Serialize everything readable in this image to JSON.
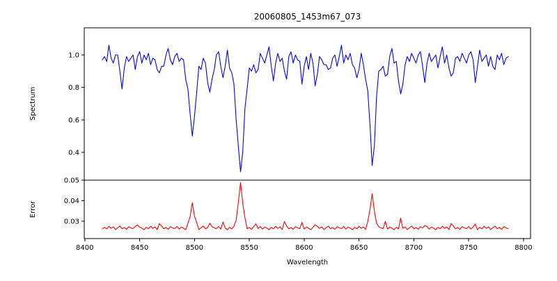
{
  "figure_title": "20060805_1453m67_073",
  "chart_data": [
    {
      "type": "line",
      "name": "spectrum",
      "title": "20060805_1453m67_073",
      "ylabel": "Spectrum",
      "line_color": "#0000ff",
      "axis_color": "#000000",
      "legend": "none",
      "grid": false,
      "xlim": [
        8399.5,
        8806.4
      ],
      "ylim": [
        0.229,
        1.167
      ],
      "yticks": [
        0.4,
        0.6,
        0.8,
        1.0
      ],
      "ytick_labels": [
        "0.4",
        "0.6",
        "0.8",
        "1.0"
      ],
      "x_start": 8416,
      "x_step": 2,
      "values": [
        0.97,
        0.99,
        0.96,
        1.06,
        0.98,
        0.95,
        1.0,
        1.0,
        0.9,
        0.79,
        0.92,
        0.99,
        0.96,
        0.98,
        1.0,
        0.91,
        0.99,
        1.02,
        0.95,
        1.0,
        0.97,
        1.01,
        0.94,
        0.98,
        0.97,
        0.91,
        0.89,
        0.93,
        0.93,
        1.0,
        1.04,
        0.97,
        0.94,
        0.99,
        1.01,
        0.96,
        0.98,
        0.97,
        0.85,
        0.79,
        0.64,
        0.5,
        0.62,
        0.77,
        0.93,
        0.91,
        0.98,
        0.95,
        0.83,
        0.77,
        0.85,
        0.91,
        1.0,
        1.02,
        0.93,
        0.86,
        0.93,
        1.03,
        0.92,
        0.89,
        0.82,
        0.6,
        0.44,
        0.28,
        0.4,
        0.67,
        0.79,
        0.92,
        0.9,
        0.94,
        0.89,
        0.91,
        1.01,
        0.98,
        0.95,
        1.0,
        1.05,
        0.93,
        0.84,
        0.95,
        1.01,
        0.96,
        0.98,
        0.9,
        0.85,
        0.99,
        1.02,
        0.95,
        1.0,
        0.97,
        0.96,
        0.82,
        0.93,
        0.99,
        0.91,
        1.01,
        0.95,
        0.81,
        0.88,
        0.99,
        0.97,
        0.94,
        0.94,
        0.91,
        0.92,
        0.98,
        1.0,
        0.93,
        0.99,
        1.06,
        0.95,
        1.0,
        0.97,
        1.01,
        0.94,
        0.92,
        0.86,
        0.91,
        1.01,
        0.94,
        0.85,
        0.78,
        0.57,
        0.32,
        0.44,
        0.74,
        0.9,
        0.91,
        0.93,
        0.87,
        0.88,
        0.99,
        1.04,
        0.95,
        0.96,
        0.84,
        0.76,
        0.82,
        0.94,
        0.99,
        0.96,
        1.01,
        0.98,
        0.95,
        1.0,
        1.02,
        0.93,
        0.83,
        0.95,
        1.01,
        0.96,
        0.98,
        1.0,
        0.92,
        0.99,
        1.05,
        0.95,
        1.0,
        0.92,
        0.87,
        0.89,
        0.98,
        0.99,
        0.96,
        1.01,
        0.98,
        0.95,
        1.0,
        1.02,
        0.97,
        0.83,
        0.93,
        1.03,
        0.96,
        0.98,
        1.0,
        0.93,
        0.99,
        0.93,
        0.91,
        1.0,
        0.97,
        1.01,
        0.94,
        0.98,
        0.99
      ]
    },
    {
      "type": "line",
      "name": "error",
      "ylabel": "Error",
      "xlabel": "Wavelength",
      "line_color": "#ff0000",
      "axis_color": "#000000",
      "legend": "none",
      "grid": false,
      "xlim": [
        8399.5,
        8806.4
      ],
      "ylim": [
        0.0215,
        0.05
      ],
      "yticks": [
        0.03,
        0.04,
        0.05
      ],
      "ytick_labels": [
        "0.03",
        "0.04",
        "0.05"
      ],
      "xticks": [
        8400,
        8450,
        8500,
        8550,
        8600,
        8650,
        8700,
        8750,
        8800
      ],
      "xtick_labels": [
        "8400",
        "8450",
        "8500",
        "8550",
        "8600",
        "8650",
        "8700",
        "8750",
        "8800"
      ],
      "x_start": 8416,
      "x_step": 2,
      "values": [
        0.0262,
        0.027,
        0.0262,
        0.0275,
        0.0265,
        0.0272,
        0.0259,
        0.0268,
        0.0276,
        0.0263,
        0.0269,
        0.026,
        0.0273,
        0.0267,
        0.0264,
        0.0274,
        0.0281,
        0.0271,
        0.0266,
        0.0258,
        0.027,
        0.0262,
        0.0275,
        0.0265,
        0.0272,
        0.0259,
        0.0288,
        0.0276,
        0.0263,
        0.0269,
        0.026,
        0.0273,
        0.0267,
        0.0264,
        0.0274,
        0.0261,
        0.0271,
        0.0266,
        0.0258,
        0.029,
        0.0322,
        0.039,
        0.0325,
        0.0292,
        0.0259,
        0.0268,
        0.0276,
        0.0263,
        0.0269,
        0.029,
        0.0273,
        0.0267,
        0.0264,
        0.0274,
        0.0261,
        0.0296,
        0.0266,
        0.0258,
        0.027,
        0.0262,
        0.0275,
        0.0305,
        0.0392,
        0.0489,
        0.0388,
        0.0316,
        0.0263,
        0.0269,
        0.026,
        0.0273,
        0.0287,
        0.0264,
        0.0274,
        0.0261,
        0.0271,
        0.0266,
        0.0258,
        0.027,
        0.0262,
        0.0275,
        0.0265,
        0.0272,
        0.0259,
        0.0298,
        0.0276,
        0.0263,
        0.0269,
        0.026,
        0.0273,
        0.0267,
        0.0264,
        0.0294,
        0.0261,
        0.0271,
        0.0266,
        0.0258,
        0.027,
        0.0282,
        0.0275,
        0.0265,
        0.0272,
        0.0259,
        0.0268,
        0.0276,
        0.0263,
        0.0269,
        0.026,
        0.0273,
        0.0267,
        0.0264,
        0.0274,
        0.0261,
        0.0271,
        0.0266,
        0.0258,
        0.027,
        0.0262,
        0.0275,
        0.0265,
        0.0272,
        0.0259,
        0.0298,
        0.0356,
        0.0433,
        0.0349,
        0.029,
        0.0273,
        0.0267,
        0.0264,
        0.0299,
        0.0261,
        0.0271,
        0.0266,
        0.0258,
        0.027,
        0.0262,
        0.0315,
        0.0265,
        0.0272,
        0.0259,
        0.0268,
        0.0276,
        0.0263,
        0.0269,
        0.026,
        0.0273,
        0.0267,
        0.0279,
        0.0274,
        0.0261,
        0.0271,
        0.0266,
        0.0258,
        0.027,
        0.0262,
        0.0275,
        0.0265,
        0.0272,
        0.0259,
        0.0288,
        0.0276,
        0.0263,
        0.0269,
        0.026,
        0.0273,
        0.0267,
        0.0264,
        0.0274,
        0.0261,
        0.0271,
        0.0286,
        0.0258,
        0.027,
        0.0262,
        0.0275,
        0.0265,
        0.0272,
        0.0259,
        0.0268,
        0.0276,
        0.0263,
        0.0269,
        0.026,
        0.0273,
        0.0267,
        0.0264
      ]
    }
  ]
}
